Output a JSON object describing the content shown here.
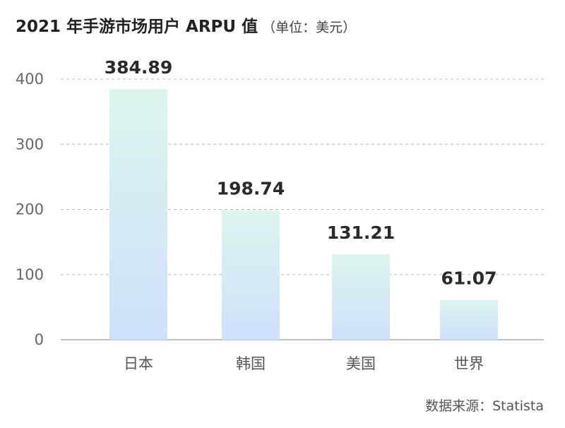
{
  "chart_data": {
    "type": "bar",
    "title": "2021 年手游市场用户 ARPU 值",
    "subtitle": "（单位：美元）",
    "categories": [
      "日本",
      "韩国",
      "美国",
      "世界"
    ],
    "values": [
      384.89,
      198.74,
      131.21,
      61.07
    ],
    "data_labels": [
      "384.89",
      "198.74",
      "131.21",
      "61.07"
    ],
    "yticks": [
      "0",
      "100",
      "200",
      "300",
      "400"
    ],
    "ylim": [
      0,
      400
    ],
    "xlabel": "",
    "ylabel": "",
    "grid": true,
    "colors": {
      "bar_top": "#dcf5ee",
      "bar_bottom": "#cfe0fb",
      "grid": "#bbbbbb",
      "axis": "#999999"
    }
  },
  "source": "数据来源：Statista"
}
